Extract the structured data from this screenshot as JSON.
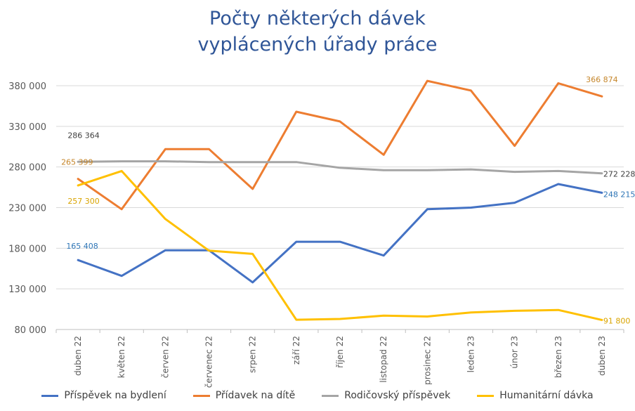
{
  "chart_data": {
    "type": "line",
    "title_line1": "Počty některých dávek",
    "title_line2": "vyplácených úřady práce",
    "categories": [
      "duben 22",
      "květen 22",
      "červen 22",
      "červenec 22",
      "srpen 22",
      "září 22",
      "říjen 22",
      "listopad 22",
      "prosinec 22",
      "leden 23",
      "únor 23",
      "březen 23",
      "duben 23"
    ],
    "ylim": [
      80000,
      380000
    ],
    "yticks": [
      80000,
      130000,
      180000,
      230000,
      280000,
      330000,
      380000
    ],
    "ytick_labels": [
      "80 000",
      "130 000",
      "180 000",
      "230 000",
      "280 000",
      "330 000",
      "380 000"
    ],
    "grid": true,
    "legend_position": "bottom",
    "series": [
      {
        "name": "Příspěvek na bydlení",
        "color": "#4472c4",
        "values": [
          165408,
          146000,
          177500,
          177500,
          138000,
          188000,
          188000,
          171000,
          228000,
          230000,
          236000,
          259000,
          248215
        ],
        "labels": [
          {
            "index": 0,
            "text": "165 408",
            "pos": "above-left"
          },
          {
            "index": 12,
            "text": "248 215",
            "pos": "right"
          }
        ]
      },
      {
        "name": "Přídavek na dítě",
        "color": "#ed7d31",
        "values": [
          265399,
          228000,
          302000,
          302000,
          253000,
          348000,
          336000,
          295000,
          386000,
          374000,
          306000,
          383000,
          366874
        ],
        "labels": [
          {
            "index": 0,
            "text": "265 399",
            "pos": "left"
          },
          {
            "index": 12,
            "text": "366 874",
            "pos": "above"
          }
        ]
      },
      {
        "name": "Rodičovský příspěvek",
        "color": "#a5a5a5",
        "values": [
          286364,
          287000,
          287000,
          286000,
          286000,
          286000,
          279000,
          276000,
          276000,
          277000,
          274000,
          275000,
          272228
        ],
        "labels": [
          {
            "index": 0,
            "text": "286 364",
            "pos": "above"
          },
          {
            "index": 12,
            "text": "272 228",
            "pos": "right"
          }
        ]
      },
      {
        "name": "Humanitární dávka",
        "color": "#ffc000",
        "values": [
          257300,
          275000,
          216000,
          177000,
          173000,
          92000,
          93000,
          97000,
          96000,
          101000,
          103000,
          104000,
          91800
        ],
        "labels": [
          {
            "index": 0,
            "text": "257 300",
            "pos": "below"
          },
          {
            "index": 12,
            "text": "91 800",
            "pos": "right"
          }
        ]
      }
    ]
  }
}
